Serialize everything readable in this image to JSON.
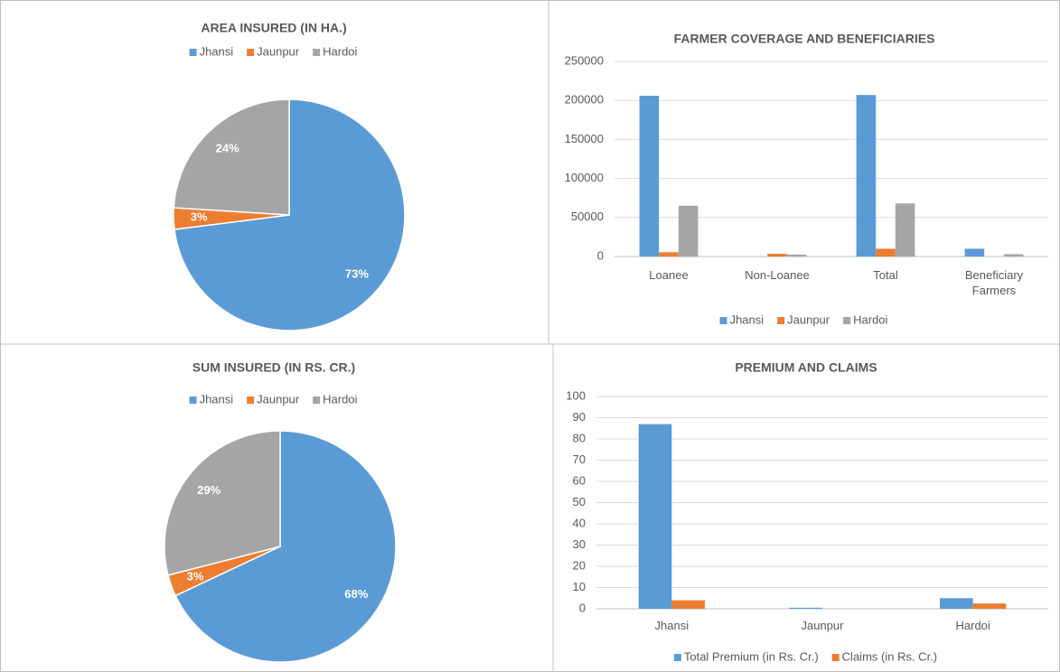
{
  "chart_data": [
    {
      "type": "pie",
      "title": "AREA INSURED (IN HA.)",
      "categories": [
        "Jhansi",
        "Jaunpur",
        "Hardoi"
      ],
      "values": [
        73,
        3,
        24
      ],
      "value_labels": [
        "73%",
        "3%",
        "24%"
      ],
      "colors": [
        "#5b9bd5",
        "#ed7d31",
        "#a5a5a5"
      ],
      "legend": "top"
    },
    {
      "type": "bar",
      "title": "FARMER COVERAGE AND BENEFICIARIES",
      "categories": [
        "Loanee",
        "Non-Loanee",
        "Total",
        "Beneficiary Farmers"
      ],
      "series": [
        {
          "name": "Jhansi",
          "color": "#5b9bd5",
          "values": [
            206000,
            0,
            207000,
            10000
          ]
        },
        {
          "name": "Jaunpur",
          "color": "#ed7d31",
          "values": [
            5500,
            3500,
            10000,
            0
          ]
        },
        {
          "name": "Hardoi",
          "color": "#a5a5a5",
          "values": [
            65000,
            2500,
            68000,
            3000
          ]
        }
      ],
      "ylim": [
        0,
        250000
      ],
      "yticks": [
        0,
        50000,
        100000,
        150000,
        200000,
        250000
      ],
      "grid": true,
      "legend": "bottom"
    },
    {
      "type": "pie",
      "title": "SUM INSURED (IN RS. CR.)",
      "categories": [
        "Jhansi",
        "Jaunpur",
        "Hardoi"
      ],
      "values": [
        68,
        3,
        29
      ],
      "value_labels": [
        "68%",
        "3%",
        "29%"
      ],
      "colors": [
        "#5b9bd5",
        "#ed7d31",
        "#a5a5a5"
      ],
      "legend": "top"
    },
    {
      "type": "bar",
      "title": "PREMIUM AND CLAIMS",
      "categories": [
        "Jhansi",
        "Jaunpur",
        "Hardoi"
      ],
      "series": [
        {
          "name": "Total Premium (in Rs. Cr.)",
          "color": "#5b9bd5",
          "values": [
            87,
            0.5,
            5
          ]
        },
        {
          "name": "Claims (in Rs. Cr.)",
          "color": "#ed7d31",
          "values": [
            4,
            0,
            2.5
          ]
        }
      ],
      "ylim": [
        0,
        100
      ],
      "yticks": [
        0,
        10,
        20,
        30,
        40,
        50,
        60,
        70,
        80,
        90,
        100
      ],
      "grid": true,
      "legend": "bottom"
    }
  ]
}
